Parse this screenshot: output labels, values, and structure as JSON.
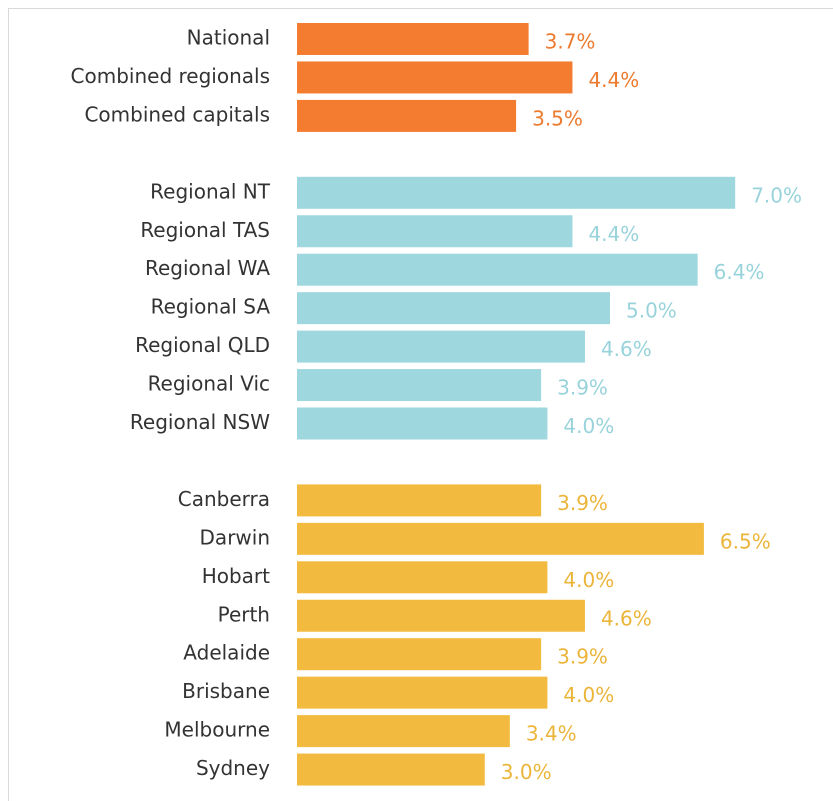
{
  "chart_data": {
    "type": "bar",
    "orientation": "horizontal",
    "groups": [
      {
        "color": "#f47c30",
        "label_color": "#ec7a2f",
        "categories": [
          "National",
          "Combined regionals",
          "Combined capitals"
        ],
        "values": [
          3.7,
          4.4,
          3.5
        ],
        "value_labels": [
          "3.7%",
          "4.4%",
          "3.5%"
        ]
      },
      {
        "color": "#9fd7de",
        "label_color": "#98d3db",
        "categories": [
          "Regional NT",
          "Regional TAS",
          "Regional WA",
          "Regional SA",
          "Regional QLD",
          "Regional Vic",
          "Regional NSW"
        ],
        "values": [
          7.0,
          4.4,
          6.4,
          5.0,
          4.6,
          3.9,
          4.0
        ],
        "value_labels": [
          "7.0%",
          "4.4%",
          "6.4%",
          "5.0%",
          "4.6%",
          "3.9%",
          "4.0%"
        ]
      },
      {
        "color": "#f2bb40",
        "label_color": "#ebb53a",
        "categories": [
          "Canberra",
          "Darwin",
          "Hobart",
          "Perth",
          "Adelaide",
          "Brisbane",
          "Melbourne",
          "Sydney"
        ],
        "values": [
          3.9,
          6.5,
          4.0,
          4.6,
          3.9,
          4.0,
          3.4,
          3.0
        ],
        "value_labels": [
          "3.9%",
          "6.5%",
          "4.0%",
          "4.6%",
          "3.9%",
          "4.0%",
          "3.4%",
          "3.0%"
        ]
      }
    ]
  }
}
